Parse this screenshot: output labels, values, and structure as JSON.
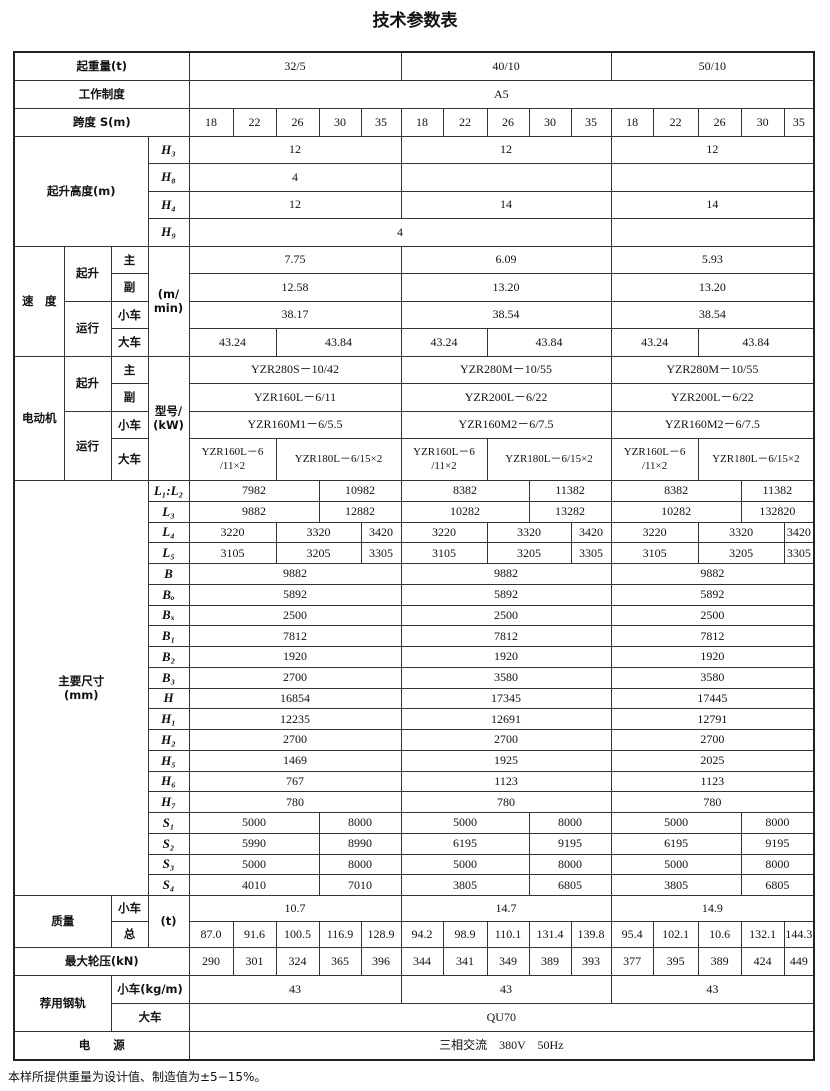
{
  "title": "技术参数表",
  "capacity": {
    "label": "起重量(t)",
    "values": [
      "32/5",
      "40/10",
      "50/10"
    ]
  },
  "duty": {
    "label": "工作制度",
    "value": "A5"
  },
  "span": {
    "label": "跨度 S(m)",
    "values": [
      "18",
      "22",
      "26",
      "30",
      "35"
    ]
  },
  "lift_height": {
    "label": "起升高度(m)",
    "H3": {
      "sym": "H₃",
      "values": [
        "12",
        "12",
        "12"
      ]
    },
    "H8": {
      "sym": "H₈",
      "values": [
        "4",
        "",
        ""
      ]
    },
    "H4": {
      "sym": "H₄",
      "values": [
        "12",
        "14",
        "14"
      ]
    },
    "H9": {
      "sym": "H₉",
      "values": [
        "4",
        ""
      ]
    }
  },
  "speed": {
    "label": "速　度",
    "hoist": "起升",
    "travel": "运行",
    "unit": "(m/\nmin)",
    "main": {
      "label": "主",
      "values": [
        "7.75",
        "6.09",
        "5.93"
      ]
    },
    "aux": {
      "label": "副",
      "values": [
        "12.58",
        "13.20",
        "13.20"
      ]
    },
    "trolley": {
      "label": "小车",
      "values": [
        "38.17",
        "38.54",
        "38.54"
      ]
    },
    "crane": {
      "label": "大车",
      "values": [
        "43.24",
        "43.84",
        "43.24",
        "43.84",
        "43.24",
        "43.84"
      ]
    }
  },
  "motor": {
    "label": "电动机",
    "hoist": "起升",
    "travel": "运行",
    "unit": "型号/\n(kW)",
    "main": {
      "label": "主",
      "values": [
        "YZR280S－10/42",
        "YZR280M－10/55",
        "YZR280M－10/55"
      ]
    },
    "aux": {
      "label": "副",
      "values": [
        "YZR160L－6/11",
        "YZR200L－6/22",
        "YZR200L－6/22"
      ]
    },
    "trolley": {
      "label": "小车",
      "values": [
        "YZR160M1－6/5.5",
        "YZR160M2－6/7.5",
        "YZR160M2－6/7.5"
      ]
    },
    "crane": {
      "label": "大车",
      "values": [
        "YZR160L－6\n/11×2",
        "YZR180L－6/15×2",
        "YZR160L－6\n/11×2",
        "YZR180L－6/15×2",
        "YZR160L－6\n/11×2",
        "YZR180L－6/15×2"
      ]
    }
  },
  "dimensions": {
    "label": "主要尺寸\n(mm)",
    "rows": [
      {
        "sym": "L₁:L₂",
        "values": [
          "7982",
          "10982",
          "8382",
          "11382",
          "8382",
          "11382"
        ]
      },
      {
        "sym": "L₃",
        "values": [
          "9882",
          "12882",
          "10282",
          "13282",
          "10282",
          "132820"
        ]
      },
      {
        "sym": "L₄",
        "values": [
          "3220",
          "3320",
          "3420",
          "3220",
          "3320",
          "3420",
          "3220",
          "3320",
          "3420"
        ]
      },
      {
        "sym": "L₅",
        "values": [
          "3105",
          "3205",
          "3305",
          "3105",
          "3205",
          "3305",
          "3105",
          "3205",
          "3305"
        ]
      },
      {
        "sym": "B",
        "values": [
          "9882",
          "9882",
          "9882"
        ]
      },
      {
        "sym": "Bₒ",
        "values": [
          "5892",
          "5892",
          "5892"
        ]
      },
      {
        "sym": "Bₓ",
        "values": [
          "2500",
          "2500",
          "2500"
        ]
      },
      {
        "sym": "B₁",
        "values": [
          "7812",
          "7812",
          "7812"
        ]
      },
      {
        "sym": "B₂",
        "values": [
          "1920",
          "1920",
          "1920"
        ]
      },
      {
        "sym": "B₃",
        "values": [
          "2700",
          "3580",
          "3580"
        ]
      },
      {
        "sym": "H",
        "values": [
          "16854",
          "17345",
          "17445"
        ]
      },
      {
        "sym": "H₁",
        "values": [
          "12235",
          "12691",
          "12791"
        ]
      },
      {
        "sym": "H₂",
        "values": [
          "2700",
          "2700",
          "2700"
        ]
      },
      {
        "sym": "H₅",
        "values": [
          "1469",
          "1925",
          "2025"
        ]
      },
      {
        "sym": "H₆",
        "values": [
          "767",
          "1123",
          "1123"
        ]
      },
      {
        "sym": "H₇",
        "values": [
          "780",
          "780",
          "780"
        ]
      },
      {
        "sym": "S₁",
        "values": [
          "5000",
          "8000",
          "5000",
          "8000",
          "5000",
          "8000"
        ]
      },
      {
        "sym": "S₂",
        "values": [
          "5990",
          "8990",
          "6195",
          "9195",
          "6195",
          "9195"
        ]
      },
      {
        "sym": "S₃",
        "values": [
          "5000",
          "8000",
          "5000",
          "8000",
          "5000",
          "8000"
        ]
      },
      {
        "sym": "S₄",
        "values": [
          "4010",
          "7010",
          "3805",
          "6805",
          "3805",
          "6805"
        ]
      }
    ]
  },
  "mass": {
    "label": "质量",
    "unit": "(t)",
    "trolley": {
      "label": "小车",
      "values": [
        "10.7",
        "14.7",
        "14.9"
      ]
    },
    "total": {
      "label": "总",
      "values": [
        "87.0",
        "91.6",
        "100.5",
        "116.9",
        "128.9",
        "94.2",
        "98.9",
        "110.1",
        "131.4",
        "139.8",
        "95.4",
        "102.1",
        "10.6",
        "132.1",
        "144.3"
      ]
    }
  },
  "wheel_load": {
    "label": "最大轮压(kN)",
    "values": [
      "290",
      "301",
      "324",
      "365",
      "396",
      "344",
      "341",
      "349",
      "389",
      "393",
      "377",
      "395",
      "389",
      "424",
      "449"
    ]
  },
  "rail": {
    "label": "荐用钢轨",
    "trolley": {
      "label": "小车(kg/m)",
      "values": [
        "43",
        "43",
        "43"
      ]
    },
    "crane": {
      "label": "大车",
      "value": "QU70"
    }
  },
  "power": {
    "label": "电　　源",
    "value": "三相交流　380V　50Hz"
  },
  "note": "本样所提供重量为设计值、制造值为±5−15%。"
}
